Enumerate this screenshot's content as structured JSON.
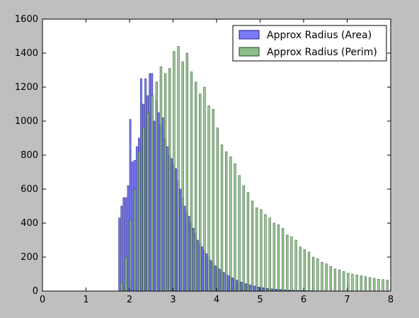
{
  "chart_data": {
    "type": "bar",
    "title": "",
    "xlabel": "",
    "ylabel": "",
    "xlim": [
      0,
      8
    ],
    "ylim": [
      0,
      1600
    ],
    "x_ticks": [
      0,
      1,
      2,
      3,
      4,
      5,
      6,
      7,
      8
    ],
    "y_ticks": [
      0,
      200,
      400,
      600,
      800,
      1000,
      1200,
      1400,
      1600
    ],
    "x_tick_labels": [
      "0",
      "1",
      "2",
      "3",
      "4",
      "5",
      "6",
      "7",
      "8"
    ],
    "y_tick_labels": [
      "0",
      "200",
      "400",
      "600",
      "800",
      "1000",
      "1200",
      "1400",
      "1600"
    ],
    "grid": false,
    "legend_position": "top-right",
    "series": [
      {
        "name": "Approx Radius (Area)",
        "color": "#7b7bf7",
        "edge_color": "#1f1f8f",
        "bar_width": 0.035,
        "x": [
          1.75,
          1.8,
          1.85,
          1.9,
          1.95,
          2.0,
          2.05,
          2.1,
          2.15,
          2.2,
          2.25,
          2.3,
          2.35,
          2.4,
          2.45,
          2.5,
          2.55,
          2.6,
          2.65,
          2.7,
          2.75,
          2.8,
          2.85,
          2.9,
          2.95,
          3.0,
          3.05,
          3.1,
          3.15,
          3.2,
          3.25,
          3.3,
          3.35,
          3.4,
          3.45,
          3.5,
          3.55,
          3.6,
          3.65,
          3.7,
          3.75,
          3.8,
          3.85,
          3.9,
          3.95,
          4.0,
          4.05,
          4.1,
          4.15,
          4.2,
          4.25,
          4.3,
          4.35,
          4.4,
          4.45,
          4.5,
          4.55,
          4.6,
          4.65,
          4.7,
          4.75,
          4.8,
          4.85,
          4.9,
          4.95,
          5.0,
          5.05,
          5.1,
          5.15,
          5.2,
          5.25,
          5.3,
          5.35,
          5.4,
          5.45,
          5.5,
          5.55,
          5.6,
          5.65,
          5.7,
          5.75,
          5.8,
          5.85,
          5.9,
          5.95,
          6.0,
          6.05,
          6.1,
          6.15,
          6.2,
          6.25,
          6.3,
          6.35,
          6.4,
          6.45,
          6.5
        ],
        "values": [
          430,
          500,
          550,
          550,
          620,
          1010,
          760,
          770,
          850,
          900,
          1250,
          1100,
          1250,
          1150,
          1280,
          1280,
          1000,
          1120,
          1050,
          980,
          1020,
          900,
          850,
          800,
          780,
          750,
          720,
          650,
          600,
          550,
          500,
          460,
          440,
          400,
          370,
          340,
          300,
          280,
          260,
          240,
          220,
          200,
          180,
          165,
          150,
          140,
          130,
          120,
          110,
          100,
          92,
          85,
          78,
          70,
          64,
          58,
          53,
          48,
          44,
          40,
          36,
          33,
          30,
          27,
          24,
          22,
          20,
          18,
          16,
          14,
          13,
          12,
          11,
          10,
          9,
          8,
          7,
          6,
          6,
          5,
          5,
          4,
          4,
          3,
          3,
          3,
          2,
          2,
          2,
          2,
          1,
          1,
          1,
          1,
          1,
          1
        ]
      },
      {
        "name": "Approx Radius (Perim)",
        "color": "#8fbd8a",
        "edge_color": "#1f4f1f",
        "bar_width": 0.045,
        "x": [
          1.8,
          1.9,
          2.0,
          2.1,
          2.2,
          2.3,
          2.4,
          2.5,
          2.6,
          2.7,
          2.8,
          2.9,
          3.0,
          3.1,
          3.2,
          3.3,
          3.4,
          3.5,
          3.6,
          3.7,
          3.8,
          3.9,
          4.0,
          4.1,
          4.2,
          4.3,
          4.4,
          4.5,
          4.6,
          4.7,
          4.8,
          4.9,
          5.0,
          5.1,
          5.2,
          5.3,
          5.4,
          5.5,
          5.6,
          5.7,
          5.8,
          5.9,
          6.0,
          6.1,
          6.2,
          6.3,
          6.4,
          6.5,
          6.6,
          6.7,
          6.8,
          6.9,
          7.0,
          7.1,
          7.2,
          7.3,
          7.4,
          7.5,
          7.6,
          7.7,
          7.8,
          7.9
        ],
        "values": [
          50,
          200,
          420,
          600,
          820,
          960,
          1050,
          1150,
          1230,
          1320,
          1280,
          1310,
          1410,
          1440,
          1350,
          1400,
          1290,
          1230,
          1160,
          1200,
          1090,
          1070,
          960,
          860,
          820,
          790,
          750,
          680,
          620,
          580,
          530,
          490,
          480,
          450,
          430,
          400,
          390,
          370,
          330,
          320,
          300,
          260,
          245,
          230,
          200,
          190,
          170,
          160,
          145,
          130,
          125,
          115,
          105,
          100,
          95,
          90,
          85,
          80,
          75,
          70,
          68,
          65
        ]
      }
    ]
  }
}
